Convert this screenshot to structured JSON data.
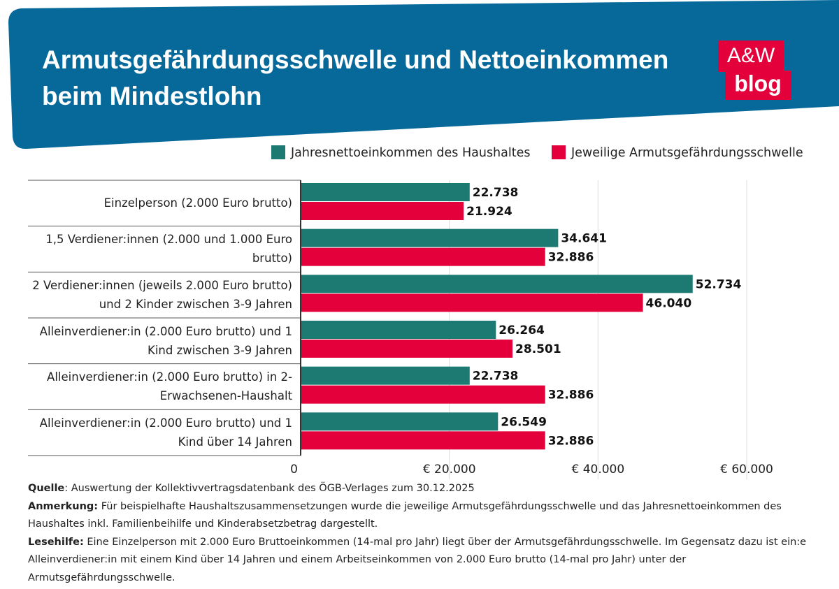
{
  "chart_data": {
    "type": "bar",
    "orientation": "horizontal",
    "title": [
      "Armutsgefährdungsschwelle und Nettoeinkommen",
      "beim Mindestlohn"
    ],
    "logo": [
      "A&W",
      "blog"
    ],
    "categories": [
      "Einzelperson (2.000 Euro brutto)",
      "1,5 Verdiener:innen (2.000 und 1.000 Euro brutto)",
      "2 Verdiener:innen (jeweils 2.000 Euro brutto) und 2 Kinder zwischen 3-9 Jahren",
      "Alleinverdiener:in (2.000 Euro brutto) und 1 Kind zwischen 3-9 Jahren",
      "Alleinverdiener:in (2.000 Euro brutto) in 2-Erwachsenen-Haushalt",
      "Alleinverdiener:in (2.000 Euro brutto) und 1 Kind über 14 Jahren"
    ],
    "series": [
      {
        "name": "Jahresnettoeinkommen des Haushaltes",
        "color": "#1d7a73",
        "values": [
          22738,
          34641,
          52734,
          26264,
          22738,
          26549
        ],
        "value_labels": [
          "22.738",
          "34.641",
          "52.734",
          "26.264",
          "22.738",
          "26.549"
        ]
      },
      {
        "name": "Jeweilige Armutsgefährdungsschwelle",
        "color": "#e3003b",
        "values": [
          21924,
          32886,
          46040,
          28501,
          32886,
          32886
        ],
        "value_labels": [
          "21.924",
          "32.886",
          "46.040",
          "28.501",
          "32.886",
          "32.886"
        ]
      }
    ],
    "xlim": [
      0,
      60000
    ],
    "xticks": [
      0,
      {
        "value": 20000,
        "label": "€ 20.000"
      },
      {
        "value": 40000,
        "label": "€ 40.000"
      },
      {
        "value": 60000,
        "label": "€ 60.000"
      }
    ],
    "grid": true,
    "notes": [
      {
        "label": "Quelle",
        "text": ": Auswertung der Kollektivvertragsdatenbank des ÖGB-Verlages zum 30.12.2025"
      },
      {
        "label": "Anmerkung:",
        "text": " Für beispielhafte Haushaltszusammensetzungen wurde die jeweilige Armutsgefährdungsschwelle und das Jahresnettoeinkommen des Haushaltes inkl. Familienbeihilfe und Kinderabsetzbetrag dargestellt."
      },
      {
        "label": "Lesehilfe:",
        "text": " Eine Einzelperson mit 2.000 Euro Bruttoeinkommen (14-mal pro Jahr) liegt über der Armutsgefährdungsschwelle. Im Gegensatz dazu ist ein:e Alleinverdiener:in mit einem Kind über 14 Jahren und einem Arbeitseinkommen von 2.000 Euro brutto (14-mal pro Jahr) unter der Armutsgefährdungsschwelle."
      }
    ]
  }
}
